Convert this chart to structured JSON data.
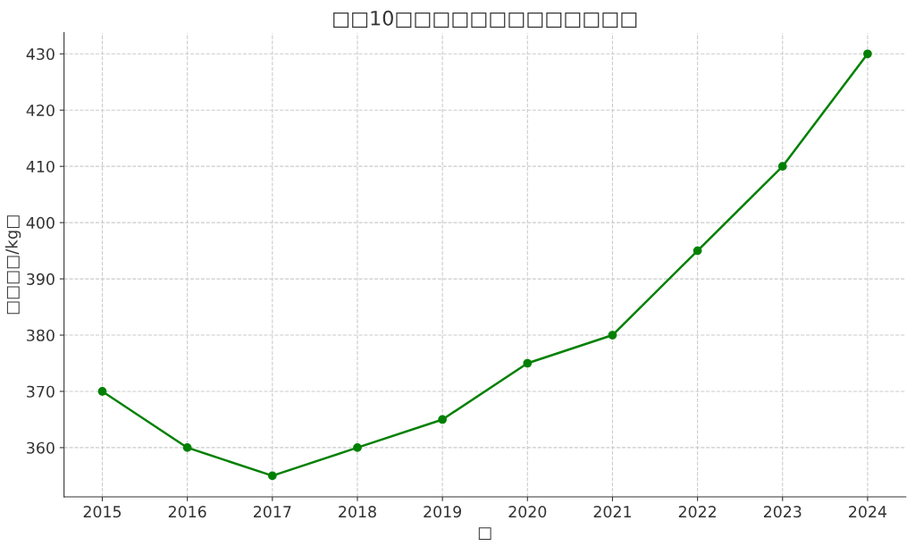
{
  "chart_data": {
    "type": "line",
    "title": "□□10□□□□□□□□□□□□□",
    "xlabel": "□",
    "ylabel": "□□□□/kg□",
    "x": [
      2015,
      2016,
      2017,
      2018,
      2019,
      2020,
      2021,
      2022,
      2023,
      2024
    ],
    "series": [
      {
        "color": "#008000",
        "values": [
          370,
          360,
          355,
          360,
          365,
          375,
          380,
          395,
          410,
          430
        ]
      }
    ],
    "xlim": [
      2014.55,
      2024.45
    ],
    "xticks": [
      2015,
      2016,
      2017,
      2018,
      2019,
      2020,
      2021,
      2022,
      2023,
      2024
    ],
    "ylim": [
      351.25,
      433.75
    ],
    "yticks": [
      360,
      370,
      380,
      390,
      400,
      410,
      420,
      430
    ],
    "grid": true,
    "marker": "circle",
    "line_style": "solid"
  }
}
